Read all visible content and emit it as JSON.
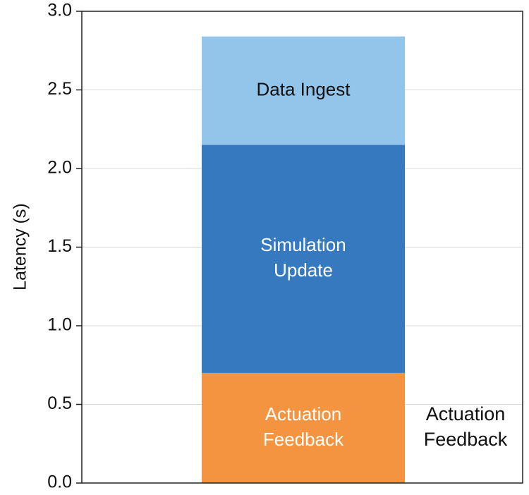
{
  "chart_data": {
    "type": "bar",
    "stacked": true,
    "title": "",
    "xlabel": "",
    "ylabel": "Latency (s)",
    "ylim": [
      0,
      3.0
    ],
    "yticks": [
      "0.0",
      "0.5",
      "1.0",
      "1.5",
      "2.0",
      "2.5",
      "3.0"
    ],
    "grid": true,
    "categories": [
      ""
    ],
    "series": [
      {
        "name": "Actuation Feedback",
        "label_lines": [
          "Actuation",
          "Feedback"
        ],
        "values": [
          0.7
        ],
        "color": "#f59440",
        "text_color": "#ffffff"
      },
      {
        "name": "Simulation Update",
        "label_lines": [
          "Simulation",
          "Update"
        ],
        "values": [
          1.45
        ],
        "color": "#3679be",
        "text_color": "#ffffff"
      },
      {
        "name": "Data Ingest",
        "label_lines": [
          "Data Ingest"
        ],
        "values": [
          0.69
        ],
        "color": "#93c5ea",
        "text_color": "#111111"
      }
    ],
    "annotation": {
      "label_lines": [
        "Actuation",
        "Feedback"
      ]
    }
  }
}
